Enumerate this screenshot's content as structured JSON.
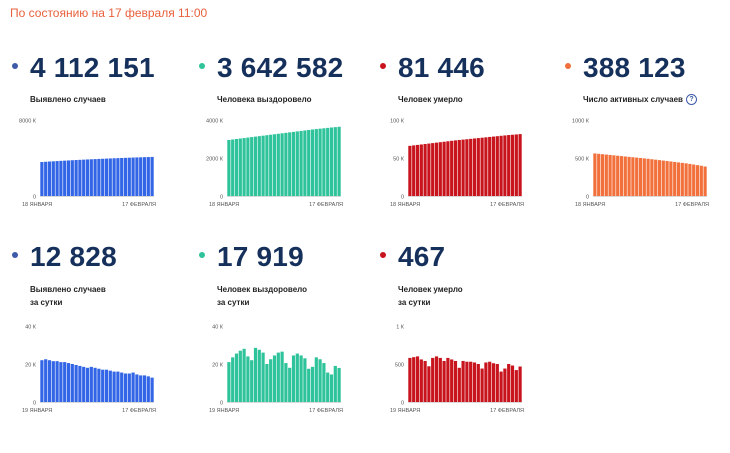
{
  "status": "По состоянию на 17 февраля 11:00",
  "colors": {
    "blue": "#3366e6",
    "green": "#2ec39a",
    "red": "#c8141c",
    "orange": "#f2703c",
    "dot_blue": "#3d5ba9",
    "dot_green": "#2ec39a",
    "dot_red": "#c8141c",
    "dot_orange": "#f2703c"
  },
  "help_icon": "question-circle-icon",
  "cards": [
    {
      "value": "4 112 151",
      "label_lines": [
        "Выявлено случаев"
      ]
    },
    {
      "value": "3 642 582",
      "label_lines": [
        "Человека выздоровело"
      ]
    },
    {
      "value": "81 446",
      "label_lines": [
        "Человек умерло"
      ]
    },
    {
      "value": "388 123",
      "label_lines": [
        "Число активных случаев"
      ]
    },
    {
      "value": "12 828",
      "label_lines": [
        "Выявлено случаев",
        "за сутки"
      ]
    },
    {
      "value": "17 919",
      "label_lines": [
        "Человек выздоровело",
        "за сутки"
      ]
    },
    {
      "value": "467",
      "label_lines": [
        "Человек умерло",
        "за сутки"
      ]
    }
  ],
  "chart_data": [
    {
      "type": "bar",
      "color": "blue",
      "ytick_labels": [
        "8000 К",
        "0"
      ],
      "ylim": [
        0,
        8000000
      ],
      "xtick_labels": [
        "18 ЯНВАРЯ",
        "17 ФЕВРАЛЯ"
      ],
      "values": [
        3580000,
        3605000,
        3629000,
        3653000,
        3677000,
        3700000,
        3722000,
        3743000,
        3764000,
        3786000,
        3807000,
        3827000,
        3847000,
        3866000,
        3884000,
        3902000,
        3920000,
        3937000,
        3954000,
        3971000,
        3987000,
        4003000,
        4018000,
        4033000,
        4047000,
        4061000,
        4074000,
        4087000,
        4100000,
        4112151
      ]
    },
    {
      "type": "bar",
      "color": "green",
      "ytick_labels": [
        "4000 К",
        "2000 К",
        "0"
      ],
      "ylim": [
        0,
        4000000
      ],
      "xtick_labels": [
        "18 ЯНВАРЯ",
        "17 ФЕВРАЛЯ"
      ],
      "values": [
        2950000,
        2975000,
        3000000,
        3025000,
        3050000,
        3075000,
        3100000,
        3125000,
        3150000,
        3175000,
        3200000,
        3225000,
        3250000,
        3275000,
        3300000,
        3325000,
        3350000,
        3375000,
        3400000,
        3425000,
        3450000,
        3475000,
        3500000,
        3522000,
        3544000,
        3565000,
        3585000,
        3605000,
        3624000,
        3642582
      ]
    },
    {
      "type": "bar",
      "color": "red",
      "ytick_labels": [
        "100 К",
        "50 К",
        "0"
      ],
      "ylim": [
        0,
        100000
      ],
      "xtick_labels": [
        "18 ЯНВАРЯ",
        "17 ФЕВРАЛЯ"
      ],
      "values": [
        66000,
        66600,
        67200,
        67800,
        68400,
        69000,
        69600,
        70200,
        70800,
        71400,
        72000,
        72600,
        73200,
        73700,
        74200,
        74700,
        75200,
        75700,
        76200,
        76700,
        77200,
        77700,
        78200,
        78700,
        79200,
        79700,
        80200,
        80600,
        81000,
        81446
      ]
    },
    {
      "type": "bar",
      "color": "orange",
      "ytick_labels": [
        "1000 К",
        "500 К",
        "0"
      ],
      "ylim": [
        0,
        1000000
      ],
      "xtick_labels": [
        "18 ЯНВАРЯ",
        "17 ФЕВРАЛЯ"
      ],
      "values": [
        560000,
        555000,
        550000,
        545000,
        540000,
        535000,
        530000,
        525000,
        520000,
        515000,
        510000,
        505000,
        500000,
        495000,
        490000,
        484000,
        478000,
        472000,
        466000,
        460000,
        454000,
        448000,
        442000,
        436000,
        430000,
        422000,
        414000,
        406000,
        398000,
        388123
      ]
    },
    {
      "type": "bar",
      "color": "blue",
      "ytick_labels": [
        "40 К",
        "20 К",
        "0"
      ],
      "ylim": [
        0,
        40000
      ],
      "xtick_labels": [
        "19 ЯНВАРЯ",
        "17 ФЕВРАЛЯ"
      ],
      "values": [
        22000,
        22500,
        22000,
        21500,
        21500,
        21000,
        21000,
        20500,
        20000,
        19500,
        19000,
        18500,
        18000,
        18500,
        18000,
        17500,
        17000,
        17000,
        16500,
        16000,
        16000,
        15500,
        15000,
        15000,
        15500,
        14500,
        14000,
        14000,
        13500,
        12828
      ]
    },
    {
      "type": "bar",
      "color": "green",
      "ytick_labels": [
        "40 К",
        "20 К",
        "0"
      ],
      "ylim": [
        0,
        40000
      ],
      "xtick_labels": [
        "19 ЯНВАРЯ",
        "17 ФЕВРАЛЯ"
      ],
      "values": [
        21000,
        23500,
        25500,
        27000,
        28000,
        24000,
        22000,
        28500,
        27500,
        26000,
        20000,
        22500,
        24500,
        26000,
        26500,
        20500,
        18000,
        24500,
        25500,
        24500,
        23000,
        17500,
        18500,
        23500,
        22500,
        20500,
        15500,
        14500,
        19000,
        17919
      ]
    },
    {
      "type": "bar",
      "color": "red",
      "ytick_labels": [
        "1 К",
        "500",
        "0"
      ],
      "ylim": [
        0,
        1000
      ],
      "xtick_labels": [
        "19 ЯНВАРЯ",
        "17 ФЕВРАЛЯ"
      ],
      "values": [
        580,
        590,
        600,
        560,
        540,
        470,
        580,
        600,
        580,
        540,
        580,
        560,
        540,
        450,
        540,
        530,
        530,
        520,
        500,
        440,
        520,
        530,
        510,
        500,
        400,
        440,
        500,
        480,
        420,
        467
      ]
    }
  ]
}
